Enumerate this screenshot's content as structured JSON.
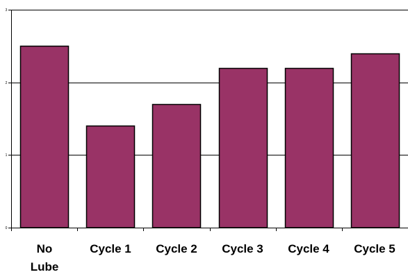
{
  "chart_data": {
    "type": "bar",
    "title": "",
    "xlabel": "",
    "ylabel": "",
    "categories": [
      "No Lube",
      "Cycle 1",
      "Cycle 2",
      "Cycle 3",
      "Cycle 4",
      "Cycle 5"
    ],
    "category_lines": [
      [
        "No",
        "Lube"
      ],
      [
        "Cycle 1"
      ],
      [
        "Cycle 2"
      ],
      [
        "Cycle 3"
      ],
      [
        "Cycle 4"
      ],
      [
        "Cycle 5"
      ]
    ],
    "values": [
      2.5,
      1.4,
      1.7,
      2.2,
      2.2,
      2.4
    ],
    "ylim": [
      0,
      3
    ],
    "y_ticks": [
      0,
      1,
      2,
      3
    ],
    "y_tick_labels": [
      "0",
      "1",
      "2",
      "3"
    ],
    "gridlines": true,
    "legend": "none",
    "colors": {
      "bar_fill": "#993366",
      "bar_stroke": "#000000",
      "gridline": "#000000",
      "axis": "#000000",
      "background": "#ffffff"
    }
  }
}
